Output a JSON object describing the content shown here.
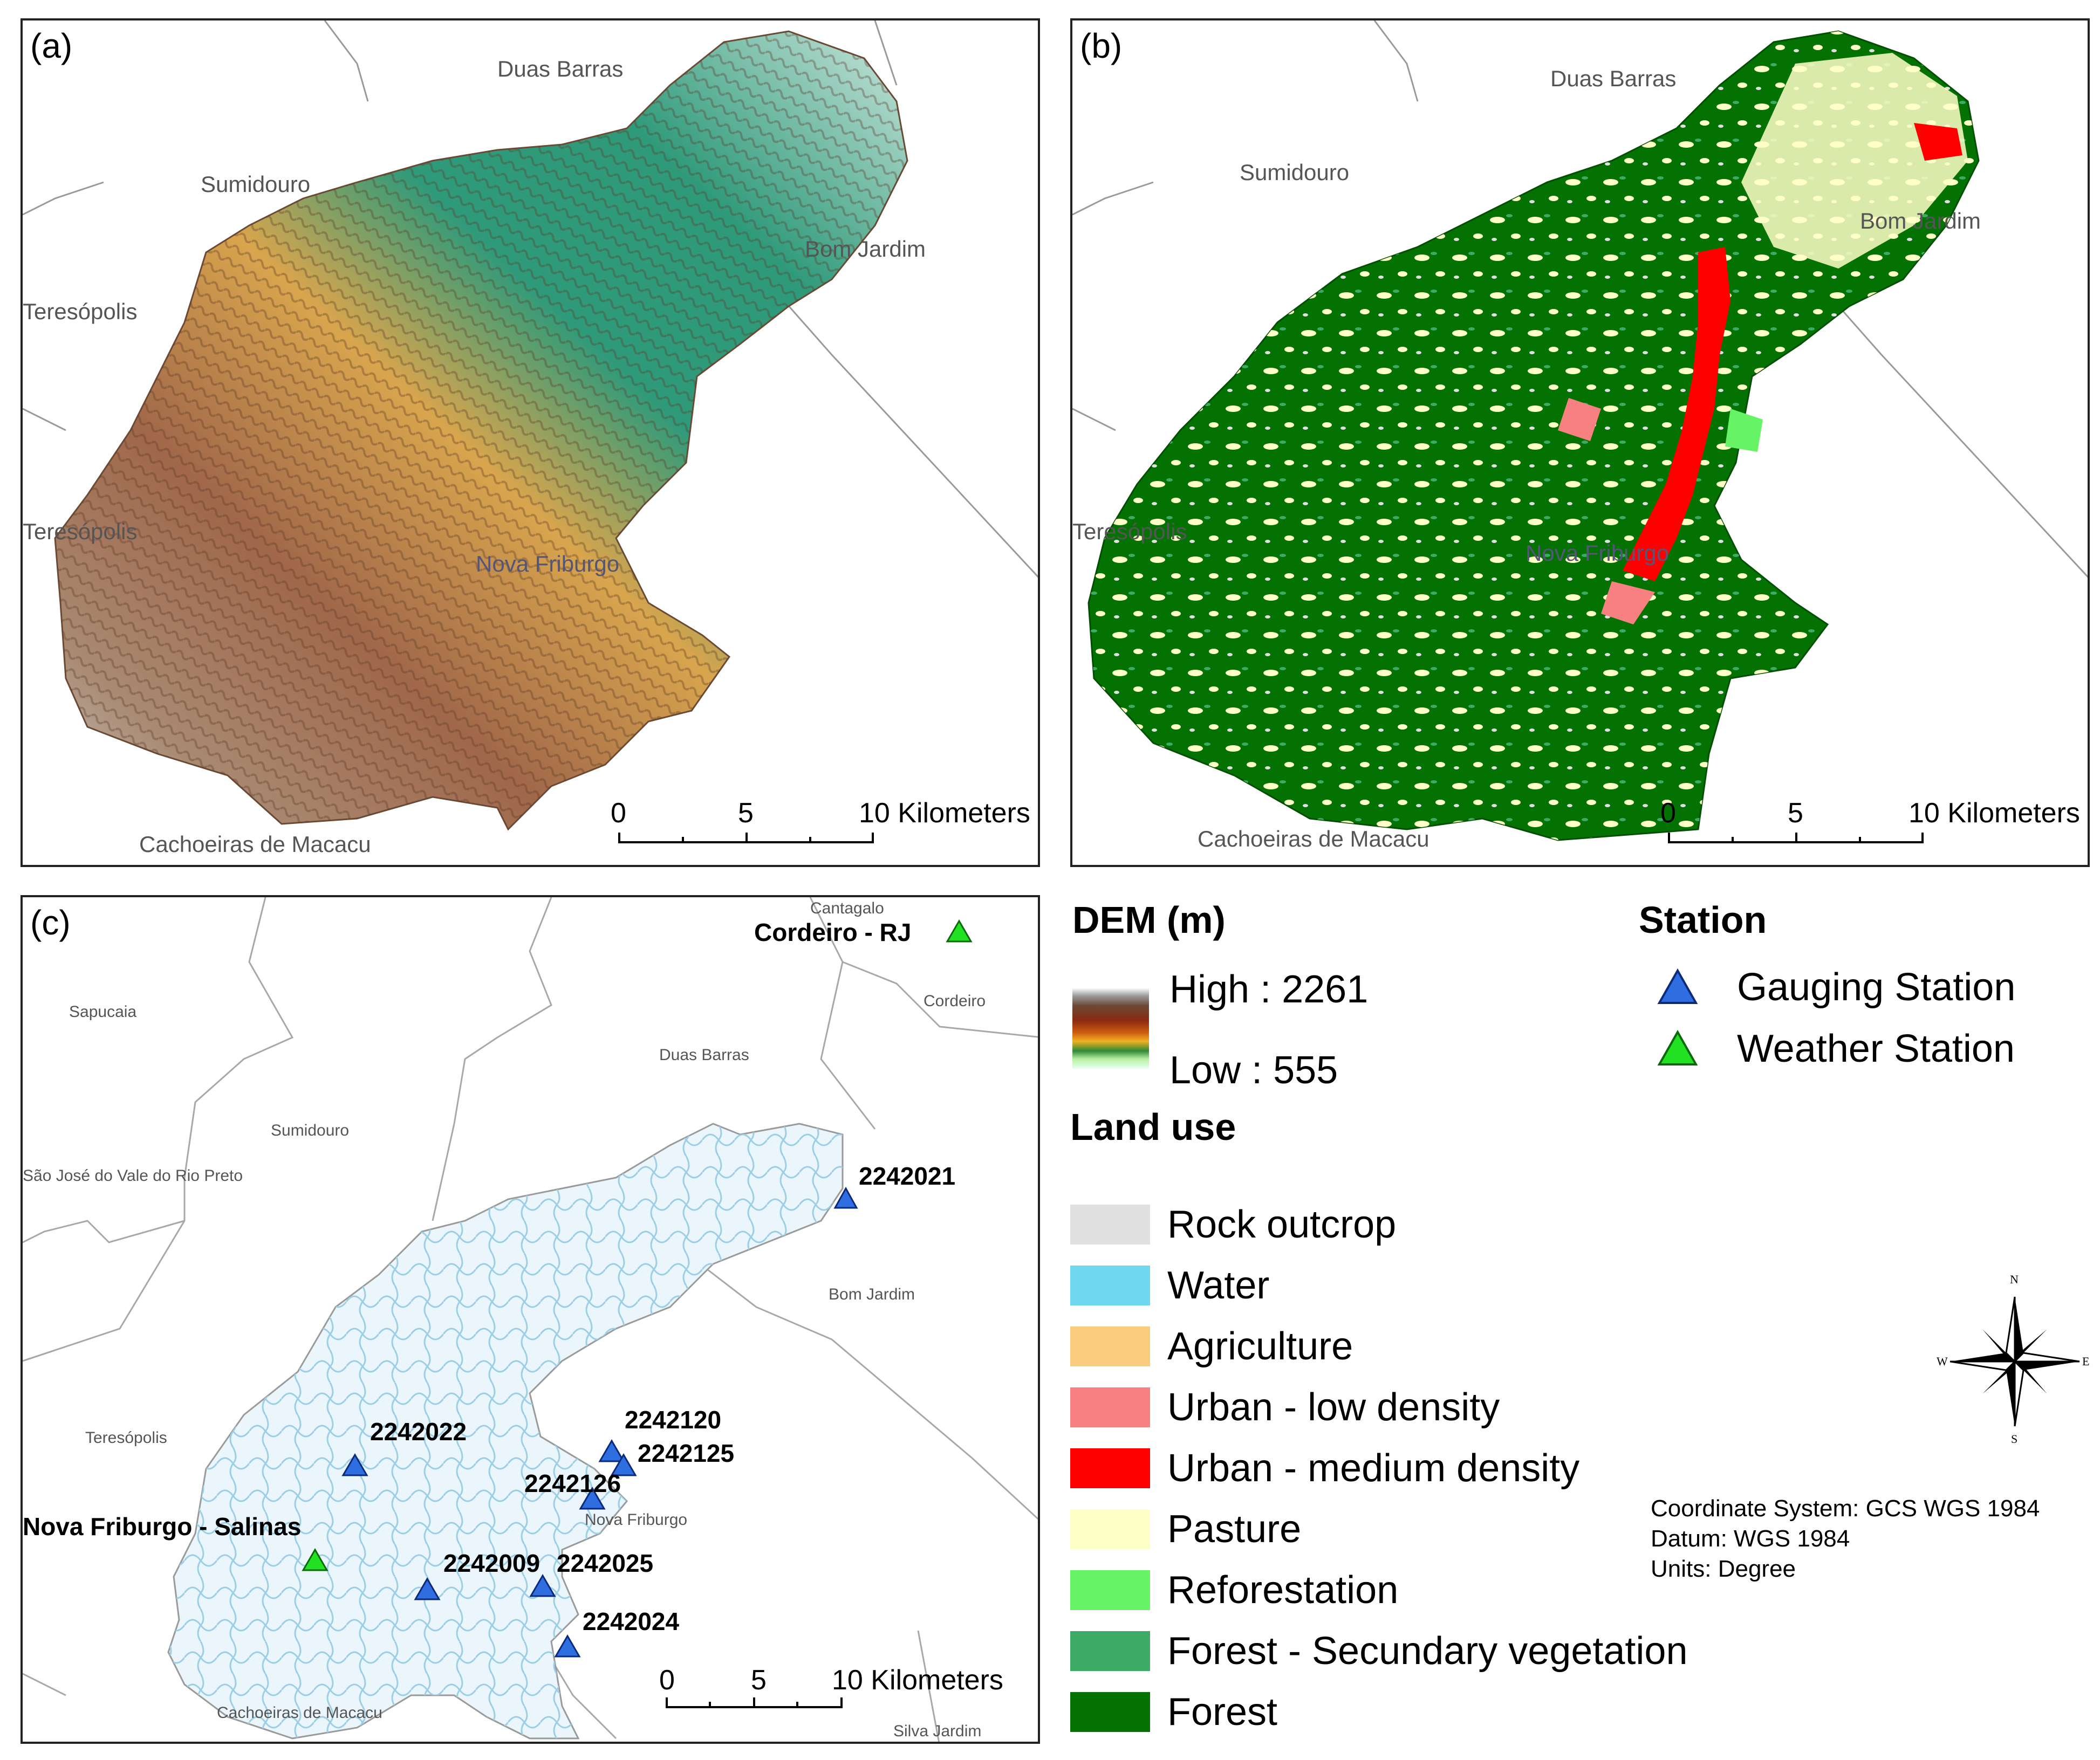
{
  "panels": {
    "a": {
      "label": "(a)",
      "places": {
        "duas_barras": "Duas Barras",
        "sumidouro": "Sumidouro",
        "bom_jardim": "Bom Jardim",
        "teresopolis1": "Teresópolis",
        "teresopolis2": "Teresópolis",
        "nova_friburgo": "Nova Friburgo",
        "cachoeiras": "Cachoeiras de Macacu"
      },
      "scale": {
        "t0": "0",
        "t5": "5",
        "t10": "10 Kilometers"
      }
    },
    "b": {
      "label": "(b)",
      "places": {
        "duas_barras": "Duas Barras",
        "sumidouro": "Sumidouro",
        "bom_jardim": "Bom Jardim",
        "teresopolis": "Teresópolis",
        "nova_friburgo": "Nova Friburgo",
        "cachoeiras": "Cachoeiras de Macacu"
      },
      "scale": {
        "t0": "0",
        "t5": "5",
        "t10": "10 Kilometers"
      }
    },
    "c": {
      "label": "(c)",
      "places": {
        "cantagalo": "Cantagalo",
        "cordeiro": "Cordeiro",
        "sapucaia": "Sapucaia",
        "duas_barras": "Duas Barras",
        "sumidouro": "Sumidouro",
        "sao_jose": "São José do Vale do Rio Preto",
        "bom_jardim": "Bom Jardim",
        "teresopolis": "Teresópolis",
        "nova_friburgo": "Nova Friburgo",
        "cachoeiras": "Cachoeiras de Macacu",
        "silva_jardim": "Silva Jardim"
      },
      "stations": {
        "s2242021": "2242021",
        "s2242022": "2242022",
        "s2242120": "2242120",
        "s2242125": "2242125",
        "s2242126": "2242126",
        "s2242009": "2242009",
        "s2242025": "2242025",
        "s2242024": "2242024",
        "cordeiro_rj": "Cordeiro - RJ",
        "nova_friburgo_salinas": "Nova Friburgo - Salinas"
      },
      "scale": {
        "t0": "0",
        "t5": "5",
        "t10": "10 Kilometers"
      }
    }
  },
  "legend": {
    "dem_title": "DEM (m)",
    "dem_high": "High : 2261",
    "dem_low": "Low : 555",
    "landuse_title": "Land use",
    "landuse": [
      {
        "label": "Rock outcrop",
        "color": "#e0e0e0"
      },
      {
        "label": "Water",
        "color": "#6fd8ee"
      },
      {
        "label": "Agriculture",
        "color": "#f9cc7e"
      },
      {
        "label": "Urban - low density",
        "color": "#f78080"
      },
      {
        "label": "Urban - medium density",
        "color": "#ff0000"
      },
      {
        "label": "Pasture",
        "color": "#ffffc8"
      },
      {
        "label": "Reforestation",
        "color": "#66f466"
      },
      {
        "label": "Forest - Secundary vegetation",
        "color": "#3dab66"
      },
      {
        "label": "Forest",
        "color": "#037203"
      }
    ],
    "station_title": "Station",
    "stations": [
      {
        "label": "Gauging Station",
        "color": "#2e6ee0"
      },
      {
        "label": "Weather Station",
        "color": "#22e022"
      }
    ]
  },
  "compass": {
    "n": "N",
    "s": "S",
    "e": "E",
    "w": "W"
  },
  "coordinate_info": {
    "line1": "Coordinate System: GCS WGS 1984",
    "line2": "Datum: WGS 1984",
    "line3": "Units: Degree"
  }
}
